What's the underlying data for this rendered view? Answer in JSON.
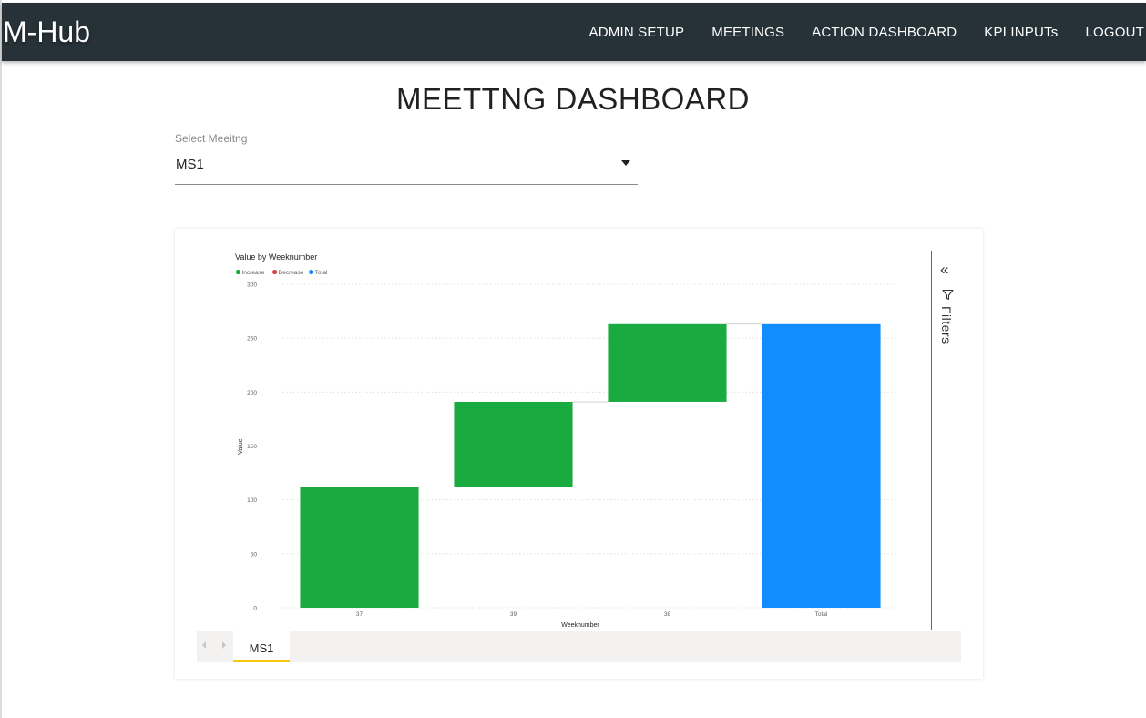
{
  "app": {
    "brand": "M-Hub"
  },
  "nav": {
    "items": [
      {
        "label": "ADMIN SETUP"
      },
      {
        "label": "MEETINGS"
      },
      {
        "label": "ACTION DASHBOARD"
      },
      {
        "label": "KPI INPUTs"
      },
      {
        "label": "LOGOUT"
      }
    ]
  },
  "page": {
    "title": "MEETTNG DASHBOARD"
  },
  "meeting_select": {
    "label": "Select Meeitng",
    "value": "MS1"
  },
  "report": {
    "filters_label": "Filters",
    "tabs": [
      {
        "label": "MS1"
      }
    ]
  },
  "colors": {
    "increase": "#1aab40",
    "decrease": "#d64550",
    "total": "#118dff",
    "topbar": "#263238",
    "tab_accent": "#f2c811"
  },
  "chart_data": {
    "type": "waterfall",
    "title": "Value by Weeknumber",
    "xlabel": "Weeknumber",
    "ylabel": "Value",
    "ylim": [
      0,
      300
    ],
    "yticks": [
      0,
      50,
      100,
      150,
      200,
      250,
      300
    ],
    "legend": [
      "Increase",
      "Decrease",
      "Total"
    ],
    "legend_position": "top-left",
    "categories": [
      "37",
      "39",
      "38",
      "Total"
    ],
    "values": [
      112,
      79,
      72,
      263
    ],
    "kinds": [
      "increase",
      "increase",
      "increase",
      "total"
    ],
    "grid": true
  }
}
